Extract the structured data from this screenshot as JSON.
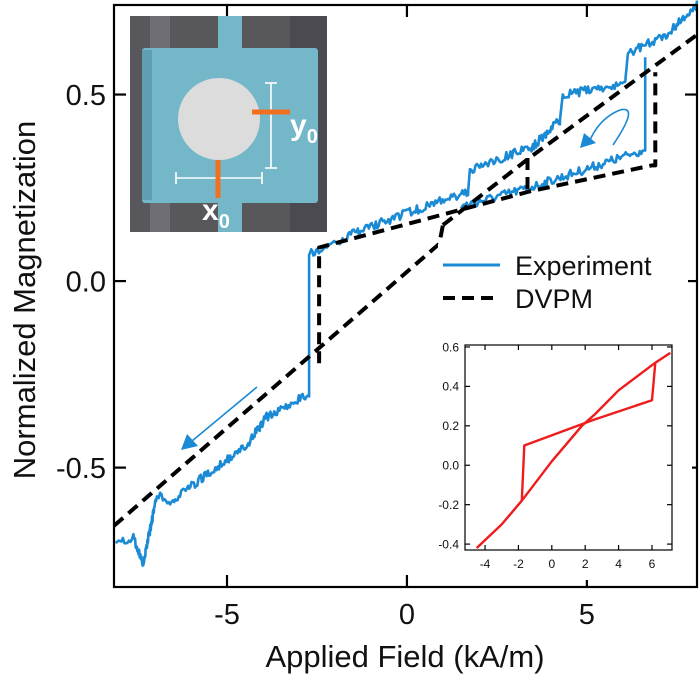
{
  "chart_data": [
    {
      "type": "line",
      "xlabel": "Applied Field (kA/m)",
      "ylabel": "Normalized Magnetization",
      "xlim": [
        -8.14,
        8.06
      ],
      "ylim": [
        -0.82,
        0.74
      ],
      "xticks": [
        -5,
        0,
        5
      ],
      "xtick_labels": [
        "-5",
        "0",
        "5"
      ],
      "yticks": [
        -0.5,
        0.0,
        0.5
      ],
      "ytick_labels": [
        "-0.5",
        "0.0",
        "0.5"
      ],
      "grid": false,
      "legend_position": "right-middle",
      "series": [
        {
          "name": "Experiment",
          "style": "solid",
          "color": "#1a8ad4",
          "segments": [
            [
              [
                8.06,
                0.74
              ],
              [
                7.2,
                0.66
              ],
              [
                6.14,
                0.61
              ],
              [
                6.06,
                0.53
              ],
              [
                4.33,
                0.5
              ],
              [
                4.25,
                0.43
              ],
              [
                3.5,
                0.36
              ],
              [
                1.75,
                0.3
              ],
              [
                1.7,
                0.24
              ],
              [
                -0.75,
                0.156
              ],
              [
                -2.6,
                0.08
              ],
              [
                -2.72,
                0.07
              ],
              [
                -2.72,
                -0.3
              ],
              [
                -3.9,
                -0.365
              ],
              [
                -4.5,
                -0.446
              ],
              [
                -5.6,
                -0.52
              ],
              [
                -6.5,
                -0.59
              ],
              [
                -6.94,
                -0.575
              ],
              [
                -7.33,
                -0.755
              ],
              [
                -7.6,
                -0.69
              ],
              [
                -8.1,
                -0.7
              ]
            ],
            [
              [
                1.5,
                0.2
              ],
              [
                3.4,
                0.25
              ],
              [
                6.55,
                0.35
              ],
              [
                6.62,
                0.35
              ],
              [
                6.62,
                0.6
              ]
            ]
          ]
        },
        {
          "name": "DVPM",
          "style": "dashed",
          "color": "#000000",
          "segments": [
            [
              [
                -8.14,
                -0.656
              ],
              [
                0.9,
                0.1
              ],
              [
                1.0,
                0.15
              ]
            ],
            [
              [
                -2.44,
                -0.22
              ],
              [
                -2.44,
                0.09
              ],
              [
                3.4,
                0.24
              ],
              [
                6.8,
                0.31
              ],
              [
                6.9,
                0.31
              ],
              [
                6.9,
                0.56
              ]
            ],
            [
              [
                1.0,
                0.15
              ],
              [
                3.4,
                0.33
              ],
              [
                8.06,
                0.66
              ]
            ],
            [
              [
                3.35,
                0.33
              ],
              [
                3.35,
                0.24
              ]
            ]
          ]
        }
      ],
      "annotations": [
        "arrow-down-left",
        "curved-arrow-down-left"
      ]
    },
    {
      "type": "line",
      "xlim": [
        -5.2,
        7.2
      ],
      "ylim": [
        -0.43,
        0.61
      ],
      "xticks": [
        -4,
        -2,
        0,
        2,
        4,
        6
      ],
      "xtick_labels": [
        "-4",
        "-2",
        "0",
        "2",
        "4",
        "6"
      ],
      "yticks": [
        -0.4,
        -0.2,
        0.0,
        0.2,
        0.4,
        0.6
      ],
      "ytick_labels": [
        "-0.4",
        "-0.2",
        "0.0",
        "0.2",
        "0.4",
        "0.6"
      ],
      "legend_position": "none",
      "series": [
        {
          "color": "#ee1c1c",
          "segments": [
            [
              [
                -4.5,
                -0.42
              ],
              [
                -3,
                -0.3
              ],
              [
                -1.8,
                -0.18
              ],
              [
                0,
                0.02
              ],
              [
                1.8,
                0.2
              ],
              [
                2.6,
                0.26
              ],
              [
                4,
                0.38
              ],
              [
                6.2,
                0.52
              ],
              [
                7.1,
                0.57
              ]
            ],
            [
              [
                -1.8,
                -0.18
              ],
              [
                -1.65,
                0.1
              ],
              [
                2.5,
                0.23
              ],
              [
                6,
                0.33
              ],
              [
                6.2,
                0.52
              ]
            ]
          ]
        }
      ]
    }
  ],
  "photo_inset": {
    "labels": {
      "x": "x",
      "x_sub": "0",
      "y": "y",
      "y_sub": "0"
    },
    "colors": {
      "pad": "#74b7c9",
      "disk": "#dcdcdc",
      "background": "#5a5a5e",
      "marker": "#f07020"
    }
  }
}
